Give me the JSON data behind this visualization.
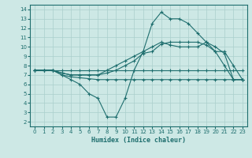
{
  "xlabel": "Humidex (Indice chaleur)",
  "background_color": "#cde8e5",
  "grid_color": "#aacfcc",
  "line_color": "#1e6e6e",
  "xlim": [
    -0.5,
    23.5
  ],
  "ylim": [
    1.5,
    14.5
  ],
  "xticks": [
    0,
    1,
    2,
    3,
    4,
    5,
    6,
    7,
    8,
    9,
    10,
    11,
    12,
    13,
    14,
    15,
    16,
    17,
    18,
    19,
    20,
    21,
    22,
    23
  ],
  "yticks": [
    2,
    3,
    4,
    5,
    6,
    7,
    8,
    9,
    10,
    11,
    12,
    13,
    14
  ],
  "line1_x": [
    0,
    1,
    2,
    3,
    4,
    5,
    6,
    7,
    8,
    9,
    10,
    11,
    12,
    13,
    14,
    15,
    16,
    17,
    18,
    19,
    20,
    21,
    22,
    23
  ],
  "line1_y": [
    7.5,
    7.5,
    7.5,
    7.5,
    7.5,
    7.5,
    7.5,
    7.5,
    7.5,
    7.5,
    7.5,
    7.5,
    7.5,
    7.5,
    7.5,
    7.5,
    7.5,
    7.5,
    7.5,
    7.5,
    7.5,
    7.5,
    7.5,
    7.5
  ],
  "line2_x": [
    0,
    1,
    2,
    3,
    4,
    5,
    6,
    7,
    8,
    9,
    10,
    11,
    12,
    13,
    14,
    15,
    16,
    17,
    18,
    19,
    20,
    21,
    22,
    23
  ],
  "line2_y": [
    7.5,
    7.5,
    7.5,
    7.0,
    6.5,
    6.0,
    5.0,
    4.5,
    2.5,
    2.5,
    4.5,
    7.5,
    9.5,
    12.5,
    13.7,
    13.0,
    13.0,
    12.5,
    11.5,
    10.5,
    9.5,
    8.0,
    6.5,
    6.5
  ],
  "line3_x": [
    0,
    2,
    3,
    4,
    5,
    6,
    7,
    8,
    9,
    10,
    11,
    12,
    13,
    14,
    15,
    16,
    17,
    18,
    19,
    20,
    21,
    22,
    23
  ],
  "line3_y": [
    7.5,
    7.5,
    7.0,
    6.8,
    6.7,
    6.6,
    6.5,
    6.5,
    6.5,
    6.5,
    6.5,
    6.5,
    6.5,
    6.5,
    6.5,
    6.5,
    6.5,
    6.5,
    6.5,
    6.5,
    6.5,
    6.5,
    6.5
  ],
  "line4_x": [
    0,
    1,
    2,
    3,
    4,
    5,
    6,
    7,
    8,
    9,
    10,
    11,
    12,
    13,
    14,
    15,
    16,
    17,
    18,
    19,
    20,
    21,
    22,
    23
  ],
  "line4_y": [
    7.5,
    7.5,
    7.5,
    7.2,
    7.0,
    7.0,
    7.0,
    7.0,
    7.2,
    7.5,
    8.0,
    8.5,
    9.3,
    9.5,
    10.3,
    10.5,
    10.5,
    10.5,
    10.5,
    10.2,
    9.5,
    9.5,
    8.0,
    6.5
  ],
  "line5_x": [
    0,
    1,
    2,
    3,
    4,
    5,
    6,
    7,
    8,
    9,
    10,
    11,
    12,
    13,
    14,
    15,
    16,
    17,
    18,
    19,
    20,
    21,
    22,
    23
  ],
  "line5_y": [
    7.5,
    7.5,
    7.5,
    7.2,
    7.0,
    7.0,
    7.0,
    7.0,
    7.5,
    8.0,
    8.5,
    9.0,
    9.5,
    10.0,
    10.5,
    10.2,
    10.0,
    10.0,
    10.0,
    10.5,
    10.0,
    9.3,
    6.5,
    6.5
  ]
}
